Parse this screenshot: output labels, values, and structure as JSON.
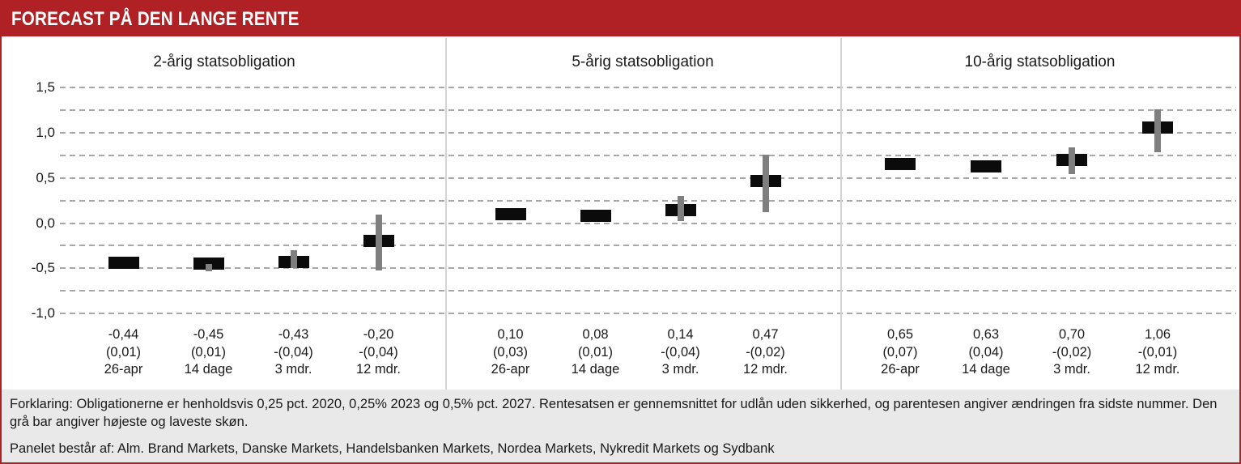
{
  "header": {
    "title": "FORECAST PÅ DEN LANGE RENTE",
    "bg_color": "#B02126",
    "text_color": "#ffffff"
  },
  "chart_data": {
    "type": "bar",
    "subtype": "forecast points with high-low range whiskers",
    "ylim": [
      -1.0,
      1.5
    ],
    "grid": "dashed horizontal lines every 0.25",
    "legend_position": "none",
    "bar_color": "#0b0b0b",
    "range_bar_color": "#7f7f7f",
    "yticks": [
      {
        "value": 1.5,
        "label": "1,5"
      },
      {
        "value": 1.0,
        "label": "1,0"
      },
      {
        "value": 0.5,
        "label": "0,5"
      },
      {
        "value": 0.0,
        "label": "0,0"
      },
      {
        "value": -0.5,
        "label": "-0,5"
      },
      {
        "value": -1.0,
        "label": "-1,0"
      }
    ],
    "categories": [
      "26-apr",
      "14 dage",
      "3 mdr.",
      "12 mdr."
    ],
    "panels": [
      {
        "title": "2-årig statsobligation",
        "points": [
          {
            "value": -0.44,
            "value_label": "-0,44",
            "change_label": "(0,01)",
            "period": "26-apr",
            "low": null,
            "high": null
          },
          {
            "value": -0.45,
            "value_label": "-0,45",
            "change_label": "(0,01)",
            "period": "14 dage",
            "low": -0.53,
            "high": -0.45
          },
          {
            "value": -0.43,
            "value_label": "-0,43",
            "change_label": "-(0,04)",
            "period": "3 mdr.",
            "low": -0.5,
            "high": -0.3
          },
          {
            "value": -0.2,
            "value_label": "-0,20",
            "change_label": "-(0,04)",
            "period": "12 mdr.",
            "low": -0.52,
            "high": 0.09
          }
        ]
      },
      {
        "title": "5-årig statsobligation",
        "points": [
          {
            "value": 0.1,
            "value_label": "0,10",
            "change_label": "(0,03)",
            "period": "26-apr",
            "low": null,
            "high": null
          },
          {
            "value": 0.08,
            "value_label": "0,08",
            "change_label": "(0,01)",
            "period": "14 dage",
            "low": null,
            "high": null
          },
          {
            "value": 0.14,
            "value_label": "0,14",
            "change_label": "-(0,04)",
            "period": "3 mdr.",
            "low": 0.02,
            "high": 0.3
          },
          {
            "value": 0.47,
            "value_label": "0,47",
            "change_label": "-(0,02)",
            "period": "12 mdr.",
            "low": 0.12,
            "high": 0.76
          }
        ]
      },
      {
        "title": "10-årig statsobligation",
        "points": [
          {
            "value": 0.65,
            "value_label": "0,65",
            "change_label": "(0,07)",
            "period": "26-apr",
            "low": null,
            "high": null
          },
          {
            "value": 0.63,
            "value_label": "0,63",
            "change_label": "(0,04)",
            "period": "14 dage",
            "low": null,
            "high": null
          },
          {
            "value": 0.7,
            "value_label": "0,70",
            "change_label": "-(0,02)",
            "period": "3 mdr.",
            "low": 0.54,
            "high": 0.84
          },
          {
            "value": 1.06,
            "value_label": "1,06",
            "change_label": "-(0,01)",
            "period": "12 mdr.",
            "low": 0.78,
            "high": 1.26
          }
        ]
      }
    ]
  },
  "footer": {
    "explanation": "Forklaring: Obligationerne er henholdsvis 0,25 pct. 2020, 0,25% 2023 og 0,5% pct. 2027. Rentesatsen er gennemsnittet for udlån uden sikkerhed, og parentesen angiver ændringen fra sidste nummer. Den grå bar angiver højeste og laveste skøn.",
    "panel_note": "Panelet består af: Alm. Brand Markets, Danske Markets, Handelsbanken Markets, Nordea Markets, Nykredit Markets og Sydbank"
  }
}
